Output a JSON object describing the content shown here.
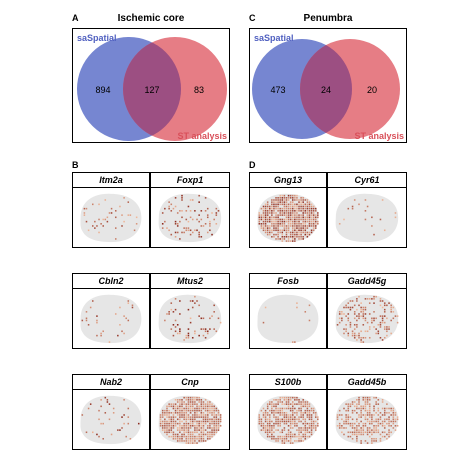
{
  "panels": {
    "A": {
      "letter": "A",
      "title": "Ischemic core",
      "left_label": "saSpatial",
      "right_label": "ST analysis",
      "left_only": "894",
      "overlap": "127",
      "right_only": "83"
    },
    "C": {
      "letter": "C",
      "title": "Penumbra",
      "left_label": "saSpatial",
      "right_label": "ST analysis",
      "left_only": "473",
      "overlap": "24",
      "right_only": "20"
    },
    "B": {
      "letter": "B",
      "genes": [
        "Itm2a",
        "Foxp1",
        "Cbln2",
        "Mtus2",
        "Nab2",
        "Cnp"
      ]
    },
    "D": {
      "letter": "D",
      "genes": [
        "Gng13",
        "Cyr61",
        "Fosb",
        "Gadd45g",
        "S100b",
        "Gadd45b"
      ]
    }
  },
  "colors": {
    "left_circle": "#6f7fcf",
    "right_circle": "#e36f78",
    "overlap": "#9c4f82",
    "left_label": "#5060c0",
    "right_label": "#d9505a",
    "tissue": "#e6e6e6",
    "spot_light": "#f0b89a",
    "spot_dark": "#8c2a1e"
  }
}
